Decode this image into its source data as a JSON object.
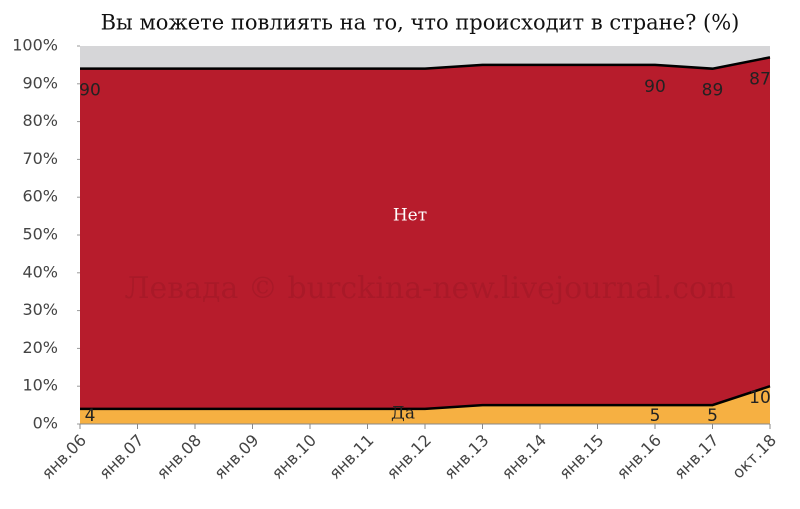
{
  "chart_data": {
    "type": "stacked_area",
    "title": "Вы можете повлиять на то, что происходит в стране? (%)",
    "watermark": "Левада © burckina-new.livejournal.com",
    "categories": [
      "янв.06",
      "янв.07",
      "янв.08",
      "янв.09",
      "янв.10",
      "янв.11",
      "янв.12",
      "янв.13",
      "янв.14",
      "янв.15",
      "янв.16",
      "янв.17",
      "окт.18"
    ],
    "series": [
      {
        "name": "Да",
        "color": "#f6b042",
        "values": [
          4,
          4,
          4,
          4,
          4,
          4,
          4,
          5,
          5,
          5,
          5,
          5,
          10
        ],
        "value_labels": [
          "4",
          null,
          null,
          null,
          null,
          null,
          null,
          null,
          null,
          null,
          "5",
          "5",
          "10"
        ]
      },
      {
        "name": "Нет",
        "color": "#b71c2c",
        "values": [
          90,
          90,
          90,
          90,
          90,
          90,
          90,
          90,
          90,
          90,
          90,
          89,
          87
        ],
        "value_labels": [
          "90",
          null,
          null,
          null,
          null,
          null,
          null,
          null,
          null,
          null,
          "90",
          "89",
          "87"
        ]
      }
    ],
    "background_color": "#d6d6d8",
    "ylim": [
      0,
      100
    ],
    "yticks": [
      {
        "value": 0,
        "label": "0%"
      },
      {
        "value": 10,
        "label": "10%"
      },
      {
        "value": 20,
        "label": "20%"
      },
      {
        "value": 30,
        "label": "30%"
      },
      {
        "value": 40,
        "label": "40%"
      },
      {
        "value": 50,
        "label": "50%"
      },
      {
        "value": 60,
        "label": "60%"
      },
      {
        "value": 70,
        "label": "70%"
      },
      {
        "value": 80,
        "label": "80%"
      },
      {
        "value": 90,
        "label": "90%"
      },
      {
        "value": 100,
        "label": "100%"
      }
    ]
  }
}
